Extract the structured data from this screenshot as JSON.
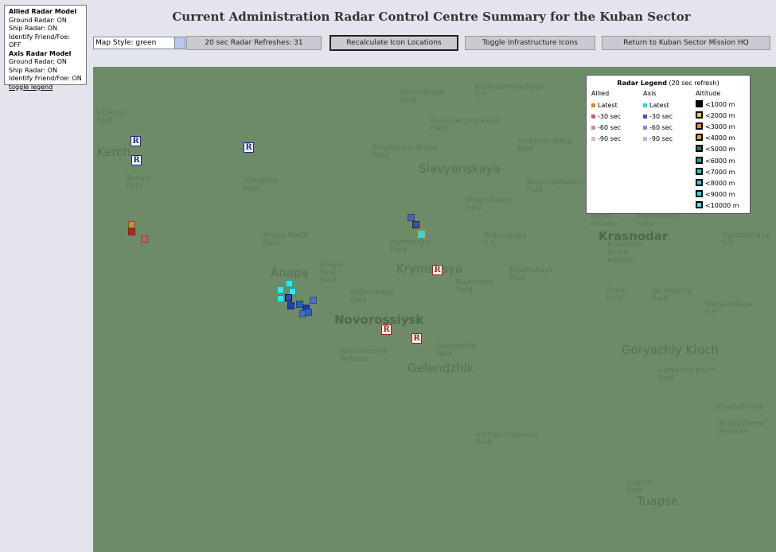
{
  "sidebar": {
    "allied_title": "Allied Radar Model",
    "allied_items": [
      "Ground Radar: ON",
      "Ship Radar: ON",
      "Identify Friend/Foe: OFF"
    ],
    "axis_title": "Axis Radar Model",
    "axis_items": [
      "Ground Radar: ON",
      "Ship Radar: ON",
      "Identify Friend/Foe: ON"
    ],
    "toggle": "toggle legend"
  },
  "header": {
    "title": "Current Administration Radar Control Centre Summary for the Kuban Sector"
  },
  "toolbar": {
    "select": "Map Style: green",
    "buttons": [
      "20 sec Radar Refreshes: 31",
      "Recalculate Icon Locations",
      "Toggle Infrastructure Icons",
      "Return to Kuban Sector Mission HQ"
    ]
  },
  "map": {
    "radar_icon": "R",
    "labels": [
      {
        "lines": [
          "Vitykovo",
          "Field"
        ]
      },
      {
        "lines": [
          "Kerch"
        ],
        "big": true
      },
      {
        "lines": [
          "Taman",
          "Field"
        ]
      },
      {
        "lines": [
          "Dzhiginka",
          "Field"
        ]
      },
      {
        "lines": [
          "Anapa North",
          "Field"
        ]
      },
      {
        "lines": [
          "Anapa"
        ],
        "big": true
      },
      {
        "lines": [
          "Anapa",
          "East",
          "Field"
        ]
      },
      {
        "lines": [
          "Rayevskaya",
          "Field"
        ]
      },
      {
        "lines": [
          "Novorossiysk"
        ],
        "big": true,
        "bold": true
      },
      {
        "lines": [
          "Novorossiysk",
          "Airbase"
        ]
      },
      {
        "lines": [
          "Gelendzhik",
          "Field"
        ]
      },
      {
        "lines": [
          "Gelendzhik"
        ],
        "big": true
      },
      {
        "lines": [
          "Krymskaya",
          "Field"
        ]
      },
      {
        "lines": [
          "Krymskaya"
        ],
        "big": true
      },
      {
        "lines": [
          "Abinskaya",
          "Field"
        ]
      },
      {
        "lines": [
          "Kholmskaya",
          "Field"
        ]
      },
      {
        "lines": [
          "Petrovskaya",
          "Field"
        ]
      },
      {
        "lines": [
          "Krasnoarmeyskaya",
          "E.F."
        ]
      },
      {
        "lines": [
          "Krasnoarmeyskaya",
          "Field"
        ]
      },
      {
        "lines": [
          "Anastasiyevskaya",
          "Field"
        ]
      },
      {
        "lines": [
          "Slavyanskaya"
        ],
        "big": true
      },
      {
        "lines": [
          "Andreyevskaya",
          "Field"
        ]
      },
      {
        "lines": [
          "Novomyshastovsk",
          "Field"
        ]
      },
      {
        "lines": [
          "Mingrelskaya",
          "Field"
        ]
      },
      {
        "lines": [
          "Poltavskaya",
          "E.F."
        ]
      },
      {
        "lines": [
          "North",
          "Airbase"
        ]
      },
      {
        "lines": [
          "Pashkovskiy",
          "Field"
        ]
      },
      {
        "lines": [
          "Krasnodar"
        ],
        "big": true,
        "bold": true
      },
      {
        "lines": [
          "Krasnodar",
          "South",
          "Airbase"
        ]
      },
      {
        "lines": [
          "Ryazanskaya",
          "E.F."
        ]
      },
      {
        "lines": [
          "Enem",
          "Field"
        ]
      },
      {
        "lines": [
          "Vochepshiy",
          "Field"
        ]
      },
      {
        "lines": [
          "Maryanskaya",
          "E.F."
        ]
      },
      {
        "lines": [
          "Goryachiy Kluch"
        ],
        "big": true
      },
      {
        "lines": [
          "Goryachiy Kluch",
          "Field"
        ]
      },
      {
        "lines": [
          "Khadyzhensk"
        ]
      },
      {
        "lines": [
          "Khadyzhensk",
          "Airbase"
        ]
      },
      {
        "lines": [
          "Arkhipo-Osipovka",
          "Field"
        ]
      },
      {
        "lines": [
          "Tuapse",
          "Field"
        ]
      },
      {
        "lines": [
          "Tuapse"
        ],
        "big": true
      }
    ]
  },
  "legend": {
    "title": "Radar Legend",
    "subtitle": "(20 sec refresh)",
    "columns": [
      "Allied",
      "Axis",
      "Altitude"
    ],
    "rows": [
      "Latest",
      "-30 sec",
      "-60 sec",
      "-90 sec"
    ],
    "allied_colors": [
      "#e8802a",
      "#d06060",
      "#c890a0",
      "#d8b8c0"
    ],
    "axis_colors": [
      "#30d8e0",
      "#5050c0",
      "#8888cc",
      "#b8b8dc"
    ],
    "altitudes": [
      "<1000 m",
      "<2000 m",
      "<3000 m",
      "<4000 m",
      "<5000 m",
      "<6000 m",
      "<7000 m",
      "<8000 m",
      "<9000 m",
      "<10000 m"
    ],
    "altitude_colors": [
      "#000000",
      "#f0d020",
      "#e09030",
      "#e0a040",
      "#208050",
      "#20a0a0",
      "#20c8d0",
      "#20d0e0",
      "#20e0f0",
      "#40e8f8"
    ]
  }
}
